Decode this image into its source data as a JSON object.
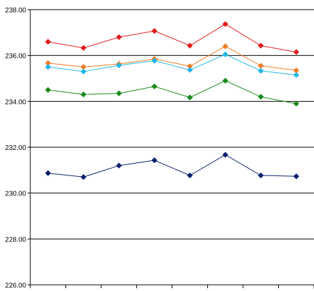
{
  "chart_data": {
    "type": "line",
    "title": "",
    "xlabel": "",
    "ylabel": "",
    "ylim": [
      226,
      238
    ],
    "y_ticks": [
      226,
      228,
      230,
      232,
      234,
      236,
      238
    ],
    "y_tick_labels": [
      "226.00",
      "228.00",
      "230.00",
      "232.00",
      "234.00",
      "236.00",
      "238.00"
    ],
    "x": [
      1,
      2,
      3,
      4,
      5,
      6,
      7,
      8
    ],
    "grid": "horizontal",
    "legend": "none",
    "series": [
      {
        "color": "#e31a1c",
        "values": [
          236.6,
          236.33,
          236.8,
          237.07,
          236.43,
          237.37,
          236.43,
          236.15
        ]
      },
      {
        "color": "#f07c22",
        "values": [
          235.67,
          235.5,
          235.63,
          235.85,
          235.53,
          236.4,
          235.55,
          235.35
        ]
      },
      {
        "color": "#23b7e5",
        "values": [
          235.5,
          235.3,
          235.57,
          235.77,
          235.37,
          236.05,
          235.33,
          235.15
        ]
      },
      {
        "color": "#1a8a1a",
        "values": [
          234.5,
          234.3,
          234.35,
          234.65,
          234.17,
          234.9,
          234.2,
          233.9
        ]
      },
      {
        "color": "#0c1f6e",
        "values": [
          230.87,
          230.7,
          231.2,
          231.43,
          230.77,
          231.67,
          230.77,
          230.73
        ]
      }
    ]
  }
}
